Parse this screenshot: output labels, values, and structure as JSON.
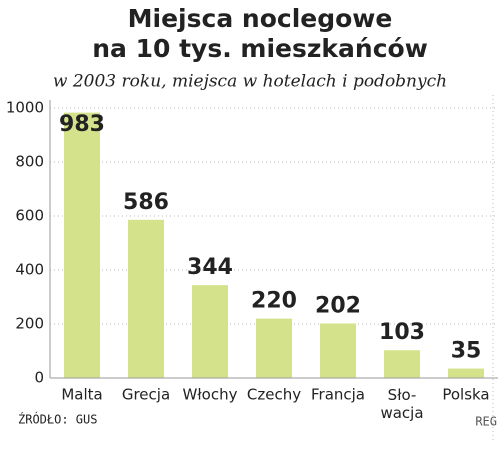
{
  "chart_data": {
    "type": "bar",
    "title": [
      "Miejsca noclegowe",
      "na 10 tys. mieszkańców"
    ],
    "subtitle": "w 2003 roku, miejsca w hotelach i podobnych",
    "categories": [
      "Malta",
      "Grecja",
      "Włochy",
      "Czechy",
      "Francja",
      "Sło-\nwacja",
      "Polska"
    ],
    "values": [
      983,
      586,
      344,
      220,
      202,
      103,
      35
    ],
    "color": "#d5e28c",
    "ylim": [
      0,
      1000
    ],
    "yticks": [
      0,
      200,
      400,
      600,
      800,
      1000
    ],
    "grid": true,
    "source": "ŹRÓDŁO: GUS",
    "credit": "REG"
  }
}
